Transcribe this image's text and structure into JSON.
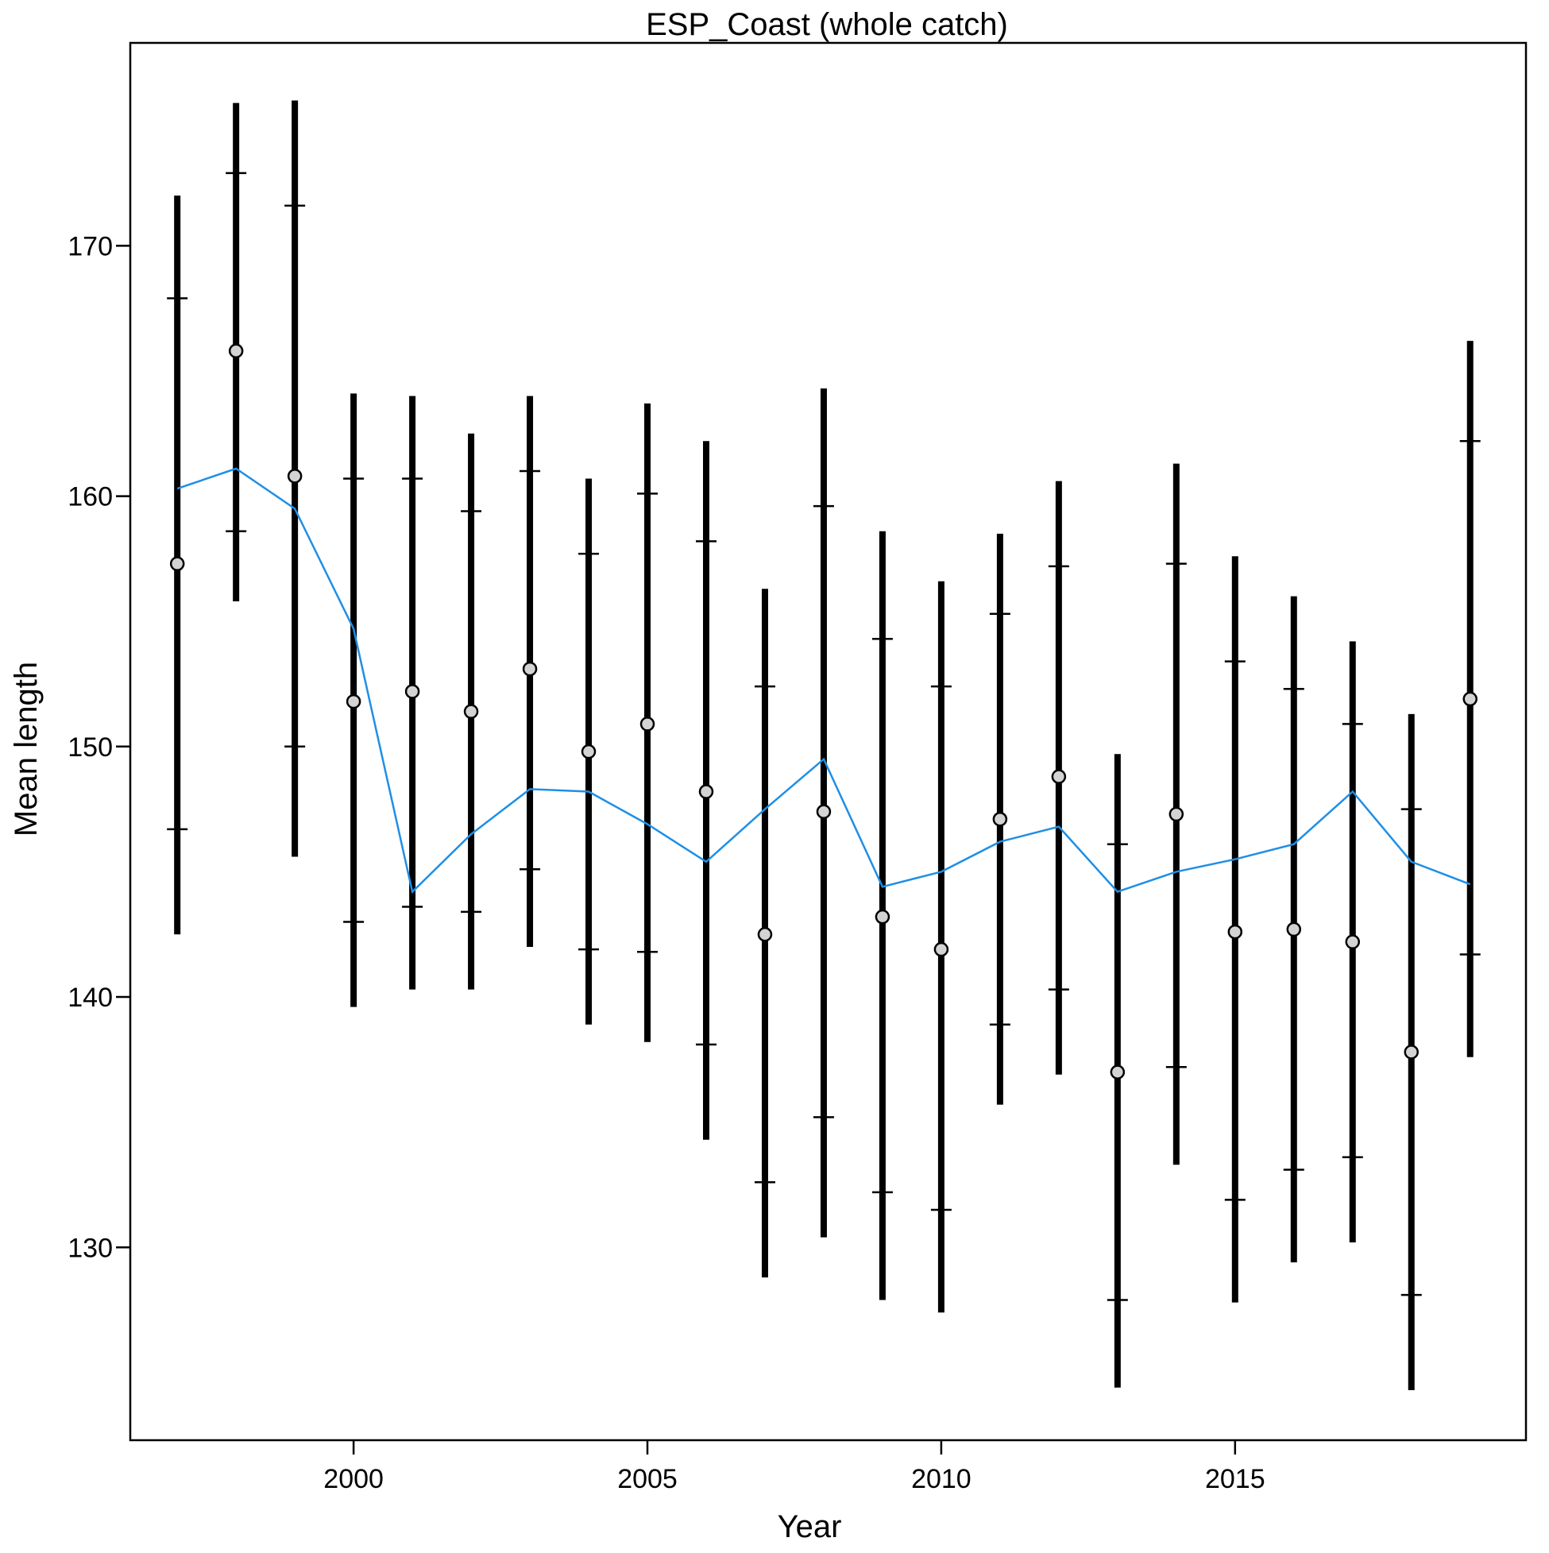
{
  "chart_data": {
    "type": "scatter",
    "title": "ESP_Coast (whole catch)",
    "xlabel": "Year",
    "ylabel": "Mean length",
    "xlim": [
      1996.2,
      2019.95
    ],
    "ylim": [
      122.3,
      178.1
    ],
    "xticks": [
      2000,
      2005,
      2010,
      2015
    ],
    "yticks": [
      130,
      140,
      150,
      160,
      170
    ],
    "grid": false,
    "colors": {
      "observed_point_fill": "#d3d3d3",
      "error_bar": "#000000",
      "expected_line": "#1e8fe6"
    },
    "series": [
      {
        "kind": "observed",
        "x": [
          1997,
          1998,
          1999,
          2000,
          2001,
          2002,
          2003,
          2004,
          2005,
          2006,
          2007,
          2008,
          2009,
          2010,
          2011,
          2012,
          2013,
          2014,
          2015,
          2016,
          2017,
          2018,
          2019
        ],
        "y": [
          157.3,
          165.8,
          160.8,
          151.8,
          152.2,
          151.4,
          153.1,
          149.8,
          150.9,
          148.2,
          142.5,
          147.4,
          143.2,
          141.9,
          147.1,
          148.8,
          137.0,
          147.3,
          142.6,
          142.7,
          142.2,
          137.8,
          151.9
        ],
        "inner_lower": [
          146.7,
          158.6,
          150.0,
          143.0,
          143.6,
          143.4,
          145.1,
          141.9,
          141.8,
          138.1,
          132.6,
          135.2,
          132.2,
          131.5,
          138.9,
          140.3,
          127.9,
          137.2,
          131.9,
          133.1,
          133.6,
          128.1,
          141.7
        ],
        "inner_upper": [
          167.9,
          172.9,
          171.6,
          160.7,
          160.7,
          159.4,
          161.0,
          157.7,
          160.1,
          158.2,
          152.4,
          159.6,
          154.3,
          152.4,
          155.3,
          157.2,
          146.1,
          157.3,
          153.4,
          152.3,
          150.9,
          147.5,
          162.2
        ],
        "outer_lower": [
          142.5,
          155.8,
          145.6,
          139.6,
          140.3,
          140.3,
          142.0,
          138.9,
          138.2,
          134.3,
          128.8,
          130.4,
          127.9,
          127.4,
          135.7,
          136.9,
          124.4,
          133.3,
          127.8,
          129.4,
          130.2,
          124.3,
          137.6
        ],
        "outer_upper": [
          172.0,
          175.7,
          175.8,
          164.1,
          164.0,
          162.5,
          164.0,
          160.7,
          163.7,
          162.2,
          156.3,
          164.3,
          158.6,
          156.6,
          158.5,
          160.6,
          149.7,
          161.3,
          157.6,
          156.0,
          154.2,
          151.3,
          166.2
        ]
      },
      {
        "kind": "expected",
        "x": [
          1997,
          1998,
          1999,
          2000,
          2001,
          2002,
          2003,
          2004,
          2005,
          2006,
          2007,
          2008,
          2009,
          2010,
          2011,
          2012,
          2013,
          2014,
          2015,
          2016,
          2017,
          2018,
          2019
        ],
        "y": [
          160.3,
          161.1,
          159.5,
          154.7,
          144.2,
          146.5,
          148.3,
          148.2,
          146.9,
          145.4,
          147.5,
          149.5,
          144.4,
          145.0,
          146.2,
          146.8,
          144.2,
          145.0,
          145.5,
          146.1,
          148.2,
          145.4,
          144.5
        ]
      }
    ]
  }
}
